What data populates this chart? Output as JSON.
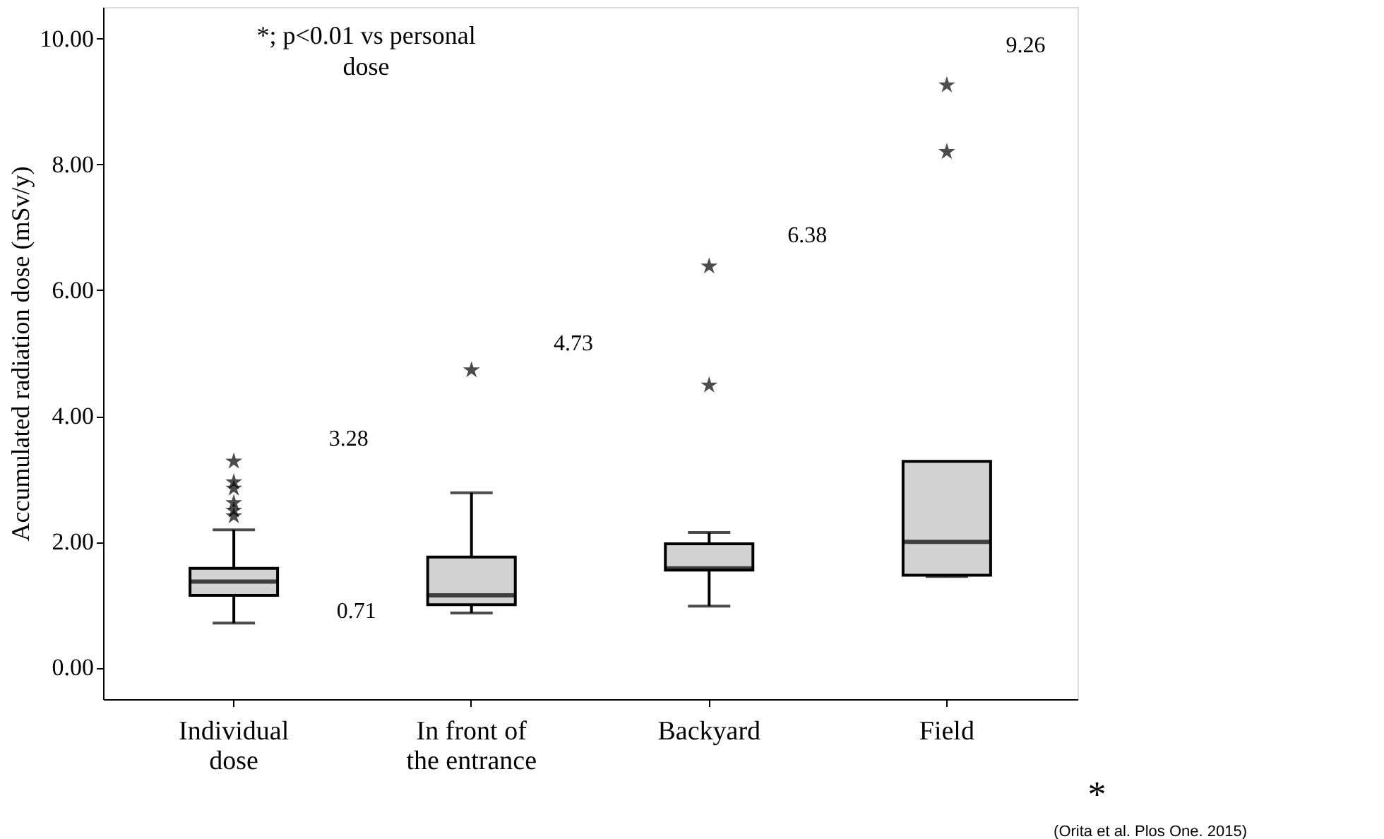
{
  "chart_data": {
    "type": "box",
    "ylabel": "Accumulated radiation dose (mSv/y)",
    "categories": [
      "Individual\ndose",
      "In front of\nthe entrance",
      "Backyard",
      "Field"
    ],
    "boxes": [
      {
        "low": 0.71,
        "q1": 1.15,
        "median": 1.37,
        "q3": 1.58,
        "high": 2.19,
        "outliers": [
          3.28,
          2.95,
          2.85,
          2.62,
          2.5,
          2.41
        ]
      },
      {
        "low": 0.87,
        "q1": 1.0,
        "median": 1.15,
        "q3": 1.76,
        "high": 2.78,
        "outliers": [
          4.73
        ]
      },
      {
        "low": 0.98,
        "q1": 1.55,
        "median": 1.58,
        "q3": 1.97,
        "high": 2.15,
        "outliers": [
          6.38,
          4.49
        ]
      },
      {
        "low": 1.45,
        "q1": 1.47,
        "median": 2.0,
        "q3": 3.28,
        "high": 3.28,
        "outliers": [
          9.26,
          8.2
        ]
      }
    ],
    "color": "#d3d3d3",
    "marker": "star",
    "ylim": [
      -0.5,
      10.5
    ],
    "yticks": [
      {
        "value": 0,
        "label": "0.00"
      },
      {
        "value": 2,
        "label": "2.00"
      },
      {
        "value": 4,
        "label": "4.00"
      },
      {
        "value": 6,
        "label": "6.00"
      },
      {
        "value": 8,
        "label": "8.00"
      },
      {
        "value": 10,
        "label": "10.00"
      }
    ],
    "grid": false,
    "annotations": [
      "*; p<0.01 vs personal\ndose",
      "3.28",
      "0.71",
      "4.73",
      "6.38",
      "9.26",
      "*",
      "(Orita et al. Plos One. 2015)"
    ]
  }
}
